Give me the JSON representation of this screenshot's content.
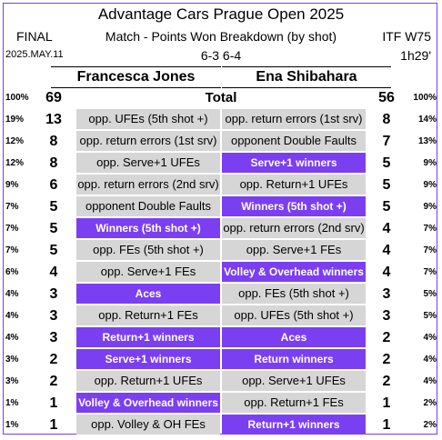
{
  "header": {
    "title": "Advantage Cars Prague Open 2025",
    "round": "FINAL",
    "subtitle": "Match - Points Won Breakdown (by shot)",
    "level": "ITF W75",
    "date": "2025.MAY.11",
    "score": "6-3  6-4",
    "duration": "1h29'"
  },
  "players": {
    "left": "Francesca Jones",
    "right": "Ena Shibahara"
  },
  "colors": {
    "gray": "#d6d6d6",
    "purple": "#7b3ff2",
    "border": "#7a3df0"
  },
  "chart_data": {
    "type": "table",
    "total": {
      "left_pct": "100%",
      "left_value": 69,
      "label": "Total",
      "right_value": 56,
      "right_pct": "100%"
    },
    "rows": [
      {
        "left_pct": "19%",
        "left_value": 13,
        "left_label": "opp. UFEs (5th shot +)",
        "left_style": "gray",
        "right_label": "opp. return errors (1st srv)",
        "right_style": "gray",
        "right_value": 8,
        "right_pct": "14%"
      },
      {
        "left_pct": "12%",
        "left_value": 8,
        "left_label": "opp. return errors (1st srv)",
        "left_style": "gray",
        "right_label": "opponent Double Faults",
        "right_style": "gray",
        "right_value": 7,
        "right_pct": "13%"
      },
      {
        "left_pct": "12%",
        "left_value": 8,
        "left_label": "opp. Serve+1 UFEs",
        "left_style": "gray",
        "right_label": "Serve+1 winners",
        "right_style": "purple",
        "right_value": 5,
        "right_pct": "9%"
      },
      {
        "left_pct": "9%",
        "left_value": 6,
        "left_label": "opp. return errors (2nd srv)",
        "left_style": "gray",
        "right_label": "opp. Return+1 UFEs",
        "right_style": "gray",
        "right_value": 5,
        "right_pct": "9%"
      },
      {
        "left_pct": "7%",
        "left_value": 5,
        "left_label": "opponent Double Faults",
        "left_style": "gray",
        "right_label": "Winners (5th shot +)",
        "right_style": "purple",
        "right_value": 5,
        "right_pct": "9%"
      },
      {
        "left_pct": "7%",
        "left_value": 5,
        "left_label": "Winners (5th shot +)",
        "left_style": "purple",
        "right_label": "opp. return errors (2nd srv)",
        "right_style": "gray",
        "right_value": 4,
        "right_pct": "7%"
      },
      {
        "left_pct": "7%",
        "left_value": 5,
        "left_label": "opp. FEs (5th shot +)",
        "left_style": "gray",
        "right_label": "opp. Serve+1 FEs",
        "right_style": "gray",
        "right_value": 4,
        "right_pct": "7%"
      },
      {
        "left_pct": "6%",
        "left_value": 4,
        "left_label": "opp. Serve+1 FEs",
        "left_style": "gray",
        "right_label": "Volley & Overhead winners",
        "right_style": "purple",
        "right_value": 4,
        "right_pct": "7%"
      },
      {
        "left_pct": "4%",
        "left_value": 3,
        "left_label": "Aces",
        "left_style": "purple",
        "right_label": "opp. FEs (5th shot +)",
        "right_style": "gray",
        "right_value": 3,
        "right_pct": "5%"
      },
      {
        "left_pct": "4%",
        "left_value": 3,
        "left_label": "opp. Return+1 FEs",
        "left_style": "gray",
        "right_label": "opp. UFEs (5th shot +)",
        "right_style": "gray",
        "right_value": 3,
        "right_pct": "5%"
      },
      {
        "left_pct": "4%",
        "left_value": 3,
        "left_label": "Return+1 winners",
        "left_style": "purple",
        "right_label": "Aces",
        "right_style": "purple",
        "right_value": 2,
        "right_pct": "4%"
      },
      {
        "left_pct": "3%",
        "left_value": 2,
        "left_label": "Serve+1 winners",
        "left_style": "purple",
        "right_label": "Return winners",
        "right_style": "purple",
        "right_value": 2,
        "right_pct": "4%"
      },
      {
        "left_pct": "3%",
        "left_value": 2,
        "left_label": "opp. Return+1 UFEs",
        "left_style": "gray",
        "right_label": "opp. Serve+1 UFEs",
        "right_style": "gray",
        "right_value": 2,
        "right_pct": "4%"
      },
      {
        "left_pct": "1%",
        "left_value": 1,
        "left_label": "Volley & Overhead winners",
        "left_style": "purple",
        "right_label": "opp. Return+1 FEs",
        "right_style": "gray",
        "right_value": 1,
        "right_pct": "2%"
      },
      {
        "left_pct": "1%",
        "left_value": 1,
        "left_label": "opp. Volley & OH FEs",
        "left_style": "gray",
        "right_label": "Return+1 winners",
        "right_style": "purple",
        "right_value": 1,
        "right_pct": "2%"
      }
    ]
  }
}
